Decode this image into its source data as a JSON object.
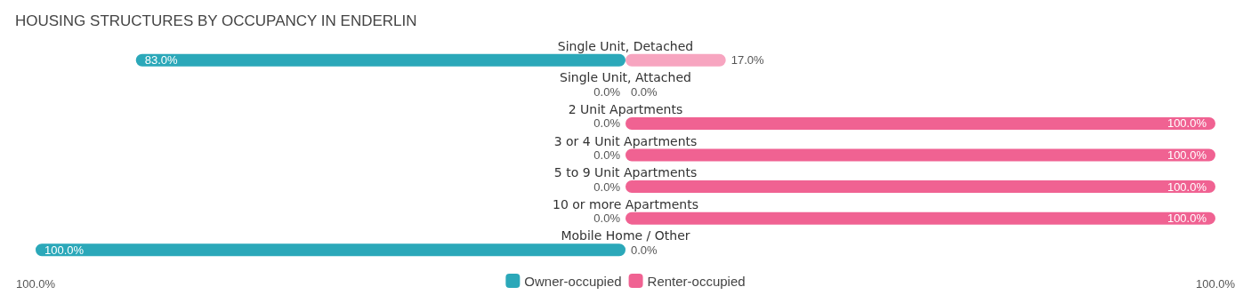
{
  "chart_data": {
    "type": "bar",
    "title": "HOUSING STRUCTURES BY OCCUPANCY IN ENDERLIN",
    "orientation": "horizontal",
    "categories": [
      "Single Unit, Detached",
      "Single Unit, Attached",
      "2 Unit Apartments",
      "3 or 4 Unit Apartments",
      "5 to 9 Unit Apartments",
      "10 or more Apartments",
      "Mobile Home / Other"
    ],
    "series": [
      {
        "name": "Owner-occupied",
        "color": "#2ba8b9",
        "colors": [
          "#2ba8b9",
          "#82cfd9",
          "#82cfd9",
          "#82cfd9",
          "#82cfd9",
          "#82cfd9",
          "#2ba8b9"
        ],
        "base": [
          -83,
          null,
          null,
          null,
          null,
          null,
          -100
        ],
        "values": [
          83,
          0,
          0,
          0,
          0,
          0,
          100
        ],
        "value_labels": [
          "83.0%",
          "0.0%",
          "0.0%",
          "0.0%",
          "0.0%",
          "0.0%",
          "100.0%"
        ]
      },
      {
        "name": "Renter-occupied",
        "color": "#f06292",
        "colors": [
          "#f7a5c0",
          "#f7a5c0",
          "#f06292",
          "#f06292",
          "#f06292",
          "#f06292",
          "#f7a5c0"
        ],
        "base": [
          0,
          null,
          0,
          0,
          0,
          0,
          null
        ],
        "values": [
          17,
          0,
          100,
          100,
          100,
          100,
          0
        ],
        "value_labels": [
          "17.0%",
          "0.0%",
          "100.0%",
          "100.0%",
          "100.0%",
          "100.0%",
          "0.0%"
        ]
      }
    ],
    "xlim": [
      -100,
      100
    ],
    "xticks": [
      {
        "value": -100,
        "label": "100.0%"
      },
      {
        "value": 100,
        "label": "100.0%"
      }
    ],
    "legend": "bottom"
  }
}
